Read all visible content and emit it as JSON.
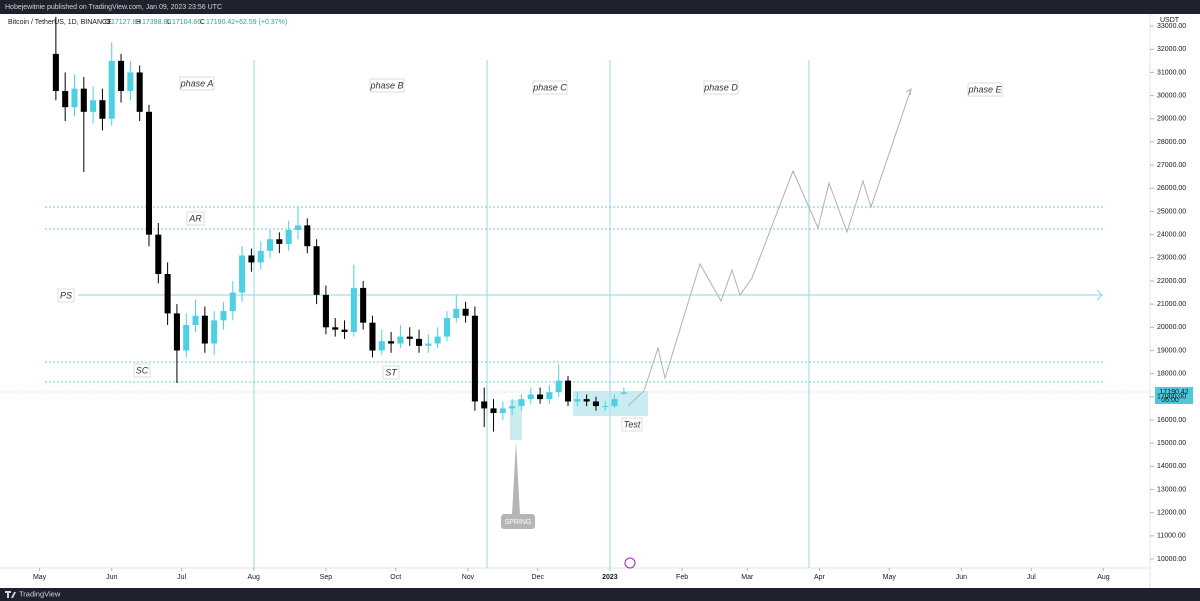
{
  "chart_data": {
    "type": "candlestick",
    "publisher": "Hobejewitnie published on TradingView.com, Jan 09, 2023 23:56 UTC",
    "symbol": "Bitcoin / TetherUS, 1D, BINANCE",
    "ohlc_header": {
      "o": "O",
      "open": "17127.83",
      "h": "H",
      "high": "17398.80",
      "l": "L",
      "low": "17104.66",
      "c": "C",
      "close": "17190.42",
      "change": "+62.59 (+0.37%)"
    },
    "currency": "USDT",
    "last_price": {
      "label": "17190.42",
      "countdown": "06:00"
    },
    "annotations": [
      "phase A",
      "phase B",
      "phase C",
      "phase D",
      "phase E",
      "AR",
      "PS",
      "SC",
      "ST",
      "Test",
      "SPRING"
    ],
    "brand": "TradingView",
    "up_color": "#4dd0e1",
    "down_color": "#000000",
    "x": [
      7,
      11,
      15,
      19,
      23,
      27,
      31,
      35,
      39,
      43,
      47,
      51,
      55,
      59,
      63,
      67,
      71,
      75,
      79,
      83,
      87,
      91,
      95,
      99,
      103,
      107,
      111,
      115,
      119,
      123,
      127,
      131,
      135,
      139,
      143,
      147,
      151,
      155,
      159,
      163,
      167,
      171,
      175,
      179,
      183,
      187,
      191,
      195,
      199,
      203,
      207,
      211,
      215,
      219,
      223,
      227,
      231,
      235,
      239,
      243,
      247,
      251
    ],
    "open": [
      31800,
      30200,
      29500,
      30300,
      29300,
      29800,
      29000,
      31500,
      30200,
      31000,
      29300,
      24000,
      22300,
      20600,
      19000,
      20100,
      20500,
      19300,
      20300,
      20700,
      21500,
      23100,
      22800,
      23300,
      23800,
      23600,
      24200,
      24400,
      23500,
      21400,
      20000,
      19900,
      19800,
      21700,
      20200,
      19000,
      19400,
      19300,
      19600,
      19500,
      19200,
      19300,
      19600,
      20400,
      20800,
      20500,
      16800,
      16500,
      16300,
      16500,
      16600,
      16900,
      17100,
      16900,
      17200,
      17700,
      16800,
      16900,
      16800,
      16600,
      16600,
      17127.83
    ],
    "high": [
      33400,
      31000,
      30900,
      30800,
      30400,
      30300,
      32300,
      31800,
      31500,
      31300,
      29600,
      24500,
      22800,
      21000,
      20600,
      21200,
      20900,
      20700,
      21100,
      22000,
      23500,
      23400,
      23700,
      24200,
      24100,
      24600,
      25200,
      24700,
      23800,
      21800,
      20400,
      20300,
      22700,
      22000,
      20500,
      19900,
      19800,
      20100,
      20000,
      19900,
      19700,
      20000,
      20700,
      21400,
      21100,
      20900,
      17400,
      16900,
      16800,
      16900,
      17100,
      17400,
      17400,
      17500,
      18400,
      17900,
      17200,
      17100,
      17000,
      16800,
      17100,
      17398.8
    ],
    "low": [
      29800,
      28900,
      29100,
      26700,
      28800,
      28500,
      28700,
      29700,
      29800,
      28900,
      23500,
      21900,
      20100,
      17600,
      18700,
      19800,
      18900,
      18800,
      19900,
      20300,
      21100,
      22400,
      22500,
      23000,
      23200,
      23300,
      23800,
      23200,
      21000,
      19700,
      19600,
      19500,
      19600,
      19900,
      18700,
      18800,
      18900,
      19100,
      19200,
      18900,
      18900,
      19100,
      19400,
      20200,
      20200,
      16400,
      15700,
      15500,
      16000,
      16200,
      16400,
      16700,
      16700,
      16700,
      17000,
      16600,
      16600,
      16600,
      16400,
      16400,
      16500,
      17104.66
    ],
    "close": [
      30200,
      29500,
      30300,
      29300,
      29800,
      29000,
      31500,
      30200,
      31000,
      29300,
      24000,
      22300,
      20600,
      19000,
      20100,
      20500,
      19300,
      20300,
      20700,
      21500,
      23100,
      22800,
      23300,
      23800,
      23600,
      24200,
      24400,
      23500,
      21400,
      20000,
      19900,
      19800,
      21700,
      20200,
      19000,
      19400,
      19300,
      19600,
      19500,
      19200,
      19300,
      19600,
      20400,
      20800,
      20500,
      16800,
      16500,
      16300,
      16500,
      16600,
      16900,
      17100,
      16900,
      17200,
      17700,
      16800,
      16900,
      16800,
      16600,
      16600,
      16900,
      17190.42
    ],
    "xlim": [
      -17,
      477
    ],
    "xticks": [
      {
        "value": 0,
        "label": "May"
      },
      {
        "value": 31,
        "label": "Jun"
      },
      {
        "value": 61,
        "label": "Jul"
      },
      {
        "value": 92,
        "label": "Aug"
      },
      {
        "value": 123,
        "label": "Sep"
      },
      {
        "value": 153,
        "label": "Oct"
      },
      {
        "value": 184,
        "label": "Nov"
      },
      {
        "value": 214,
        "label": "Dec"
      },
      {
        "value": 245,
        "label": "2023"
      },
      {
        "value": 276,
        "label": "Feb"
      },
      {
        "value": 304,
        "label": "Mar"
      },
      {
        "value": 335,
        "label": "Apr"
      },
      {
        "value": 365,
        "label": "May"
      },
      {
        "value": 396,
        "label": "Jun"
      },
      {
        "value": 426,
        "label": "Jul"
      },
      {
        "value": 457,
        "label": "Aug"
      }
    ],
    "ylim": [
      9612,
      33522
    ],
    "yticks": [
      {
        "value": 10000,
        "label": "10000.00"
      },
      {
        "value": 11000,
        "label": "11000.00"
      },
      {
        "value": 12000,
        "label": "12000.00"
      },
      {
        "value": 13000,
        "label": "13000.00"
      },
      {
        "value": 14000,
        "label": "14000.00"
      },
      {
        "value": 15000,
        "label": "15000.00"
      },
      {
        "value": 16000,
        "label": "16000.00"
      },
      {
        "value": 17000,
        "label": "17000.00"
      },
      {
        "value": 18000,
        "label": "18000.00"
      },
      {
        "value": 19000,
        "label": "19000.00"
      },
      {
        "value": 20000,
        "label": "20000.00"
      },
      {
        "value": 21000,
        "label": "21000.00"
      },
      {
        "value": 22000,
        "label": "22000.00"
      },
      {
        "value": 23000,
        "label": "23000.00"
      },
      {
        "value": 24000,
        "label": "24000.00"
      },
      {
        "value": 25000,
        "label": "25000.00"
      },
      {
        "value": 26000,
        "label": "26000.00"
      },
      {
        "value": 27000,
        "label": "27000.00"
      },
      {
        "value": 28000,
        "label": "28000.00"
      },
      {
        "value": 29000,
        "label": "29000.00"
      },
      {
        "value": 30000,
        "label": "30000.00"
      },
      {
        "value": 31000,
        "label": "31000.00"
      },
      {
        "value": 32000,
        "label": "32000.00"
      },
      {
        "value": 33000,
        "label": "33000.00"
      }
    ]
  }
}
